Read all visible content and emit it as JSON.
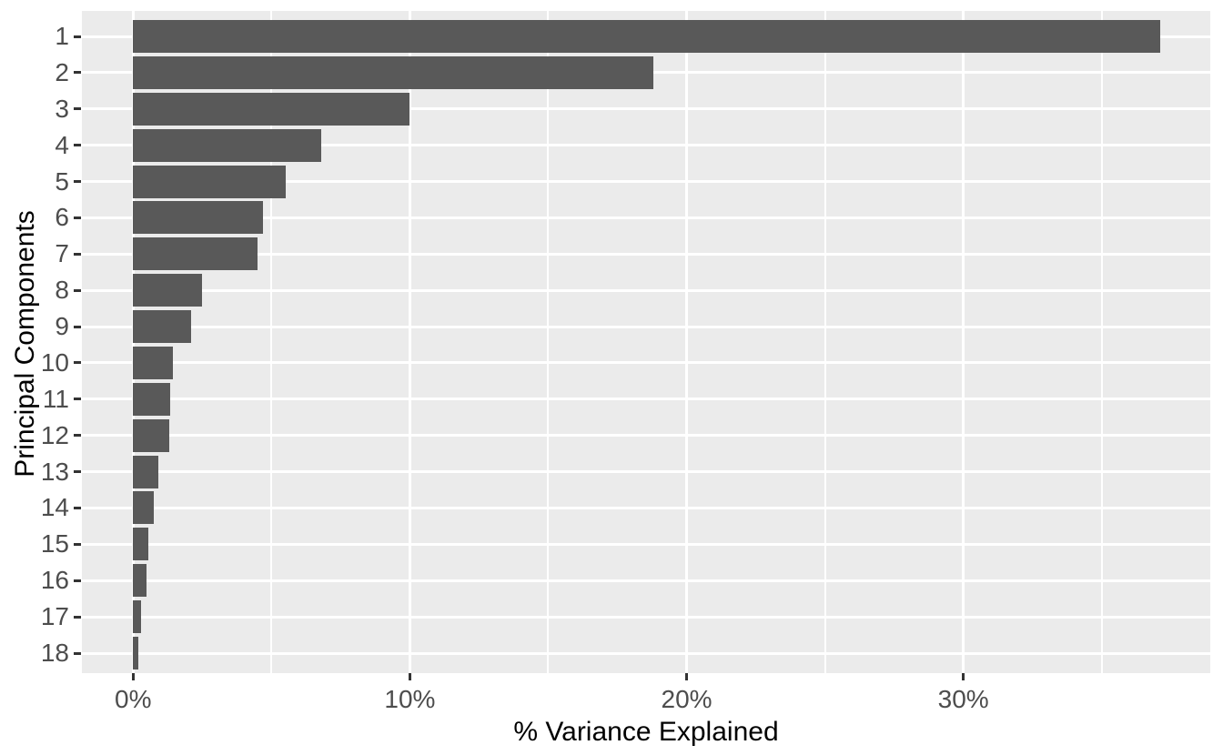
{
  "chart_data": {
    "type": "bar",
    "orientation": "horizontal",
    "title": "",
    "xlabel": "% Variance Explained",
    "ylabel": "Principal Components",
    "categories": [
      "1",
      "2",
      "3",
      "4",
      "5",
      "6",
      "7",
      "8",
      "9",
      "10",
      "11",
      "12",
      "13",
      "14",
      "15",
      "16",
      "17",
      "18"
    ],
    "values": [
      37.1,
      18.8,
      10.0,
      6.8,
      5.5,
      4.7,
      4.5,
      2.5,
      2.1,
      1.45,
      1.35,
      1.3,
      0.9,
      0.75,
      0.55,
      0.5,
      0.3,
      0.2
    ],
    "value_unit": "%",
    "x_ticks": [
      {
        "value": 0,
        "label": "0%"
      },
      {
        "value": 10,
        "label": "10%"
      },
      {
        "value": 20,
        "label": "20%"
      },
      {
        "value": 30,
        "label": "30%"
      }
    ],
    "x_minor_gridlines": [
      5,
      15,
      25,
      35
    ],
    "xlim": [
      -1.85,
      38.92
    ],
    "grid": true,
    "legend": false,
    "theme": "ggplot-gray",
    "colors": {
      "bar_fill": "#595959",
      "panel_background": "#EBEBEB",
      "gridline": "#FFFFFF",
      "tick_label": "#4D4D4D",
      "axis_title": "#000000",
      "tick_mark": "#333333",
      "page_background": "#FFFFFF"
    }
  }
}
